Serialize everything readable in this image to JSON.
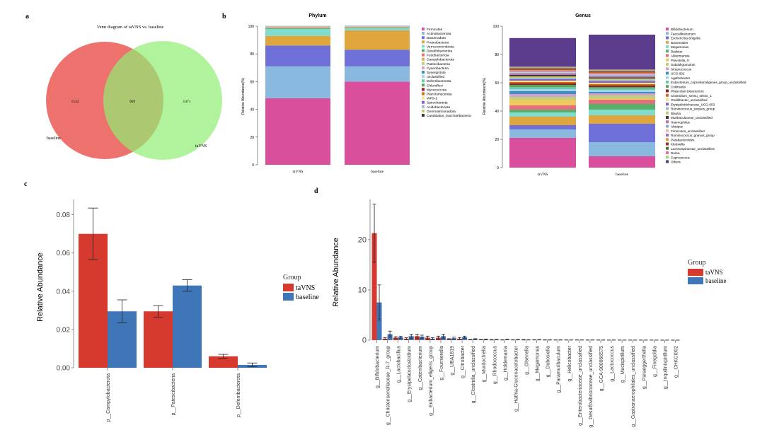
{
  "panels": {
    "a": {
      "letter": "a",
      "chart_title": "Venn diagram of taVNS vs. baseline",
      "left_label": "baseline",
      "right_label": "taVNS",
      "left_only": "1533",
      "overlap": "969",
      "right_only": "1471",
      "left_color": "#ec6a66",
      "right_color": "#90ee72"
    },
    "b": {
      "letter": "b",
      "ylabel": "Relative Abundance(%)",
      "y_ticks": [
        "0",
        "20",
        "40",
        "60",
        "80",
        "100"
      ]
    },
    "c": {
      "letter": "c"
    },
    "d": {
      "letter": "d"
    }
  },
  "chart_data": [
    {
      "id": "b-phylum",
      "type": "bar",
      "stacked": true,
      "title": "Phylum",
      "categories": [
        "taVNS",
        "baseline"
      ],
      "ylabel": "Relative Abundance(%)",
      "ylim": [
        0,
        100
      ],
      "series": [
        {
          "name": "Firmicutes",
          "color": "#d94f9b",
          "values": [
            48,
            60
          ]
        },
        {
          "name": "Actinobacteriota",
          "color": "#8ab9df",
          "values": [
            23,
            11
          ]
        },
        {
          "name": "Bacteroidota",
          "color": "#6f6fd8",
          "values": [
            15,
            12
          ]
        },
        {
          "name": "Proteobacteria",
          "color": "#e0a63e",
          "values": [
            7,
            14
          ]
        },
        {
          "name": "Verrucomicrobiota",
          "color": "#7fdccf",
          "values": [
            5,
            1.5
          ]
        },
        {
          "name": "Desulfobacterota",
          "color": "#58b06a",
          "values": [
            0.6,
            0.4
          ]
        },
        {
          "name": "Fusobacteriota",
          "color": "#e56f7d",
          "values": [
            0.3,
            0.3
          ]
        },
        {
          "name": "Campylobacterota",
          "color": "#e8a75a",
          "values": [
            0.3,
            0.2
          ]
        },
        {
          "name": "Patescibacteria",
          "color": "#b8d37c",
          "values": [
            0.2,
            0.2
          ]
        },
        {
          "name": "Cyanobacteria",
          "color": "#d99fcf",
          "values": [
            0.1,
            0.1
          ]
        },
        {
          "name": "Synergistota",
          "color": "#3a8fc4",
          "values": [
            0.1,
            0.1
          ]
        },
        {
          "name": "unclassified",
          "color": "#a3d4e8",
          "values": [
            0.1,
            0.1
          ]
        },
        {
          "name": "Deferribacterota",
          "color": "#6ac9a8",
          "values": [
            0.05,
            0.05
          ]
        },
        {
          "name": "Chloroflexi",
          "color": "#5aa65a",
          "values": [
            0.05,
            0.05
          ]
        },
        {
          "name": "Myxococcota",
          "color": "#8b1f2d",
          "values": [
            0.05,
            0.05
          ]
        },
        {
          "name": "Planctomycetota",
          "color": "#d2691e",
          "values": [
            0.05,
            0.05
          ]
        },
        {
          "name": "WPS-2",
          "color": "#f0e68c",
          "values": [
            0.05,
            0.05
          ]
        },
        {
          "name": "Spirochaetota",
          "color": "#8a5cbf",
          "values": [
            0.05,
            0.05
          ]
        },
        {
          "name": "Acidobacteriota",
          "color": "#9fb6df",
          "values": [
            0.05,
            0.05
          ]
        },
        {
          "name": "Gemmatimonadota",
          "color": "#c9c96a",
          "values": [
            0.05,
            0.05
          ]
        },
        {
          "name": "Candidatus_Saccharibacteria",
          "color": "#3b3b3b",
          "values": [
            0.05,
            0.05
          ]
        }
      ]
    },
    {
      "id": "b-genus",
      "type": "bar",
      "stacked": true,
      "title": "Genus",
      "categories": [
        "taVNS",
        "baseline"
      ],
      "ylabel": "Relative Abundance(%)",
      "ylim": [
        0,
        100
      ],
      "series": [
        {
          "name": "Bifidobacterium",
          "color": "#d94f9b",
          "values": [
            21,
            8
          ]
        },
        {
          "name": "Faecalibacterium",
          "color": "#8ab9df",
          "values": [
            6,
            10
          ]
        },
        {
          "name": "Escherichia-Shigella",
          "color": "#6f6fd8",
          "values": [
            3,
            13
          ]
        },
        {
          "name": "Bacteroides",
          "color": "#e0a63e",
          "values": [
            6,
            6
          ]
        },
        {
          "name": "Megamonas",
          "color": "#7fdccf",
          "values": [
            3,
            4
          ]
        },
        {
          "name": "Dialister",
          "color": "#58b06a",
          "values": [
            2,
            4
          ]
        },
        {
          "name": "Akkermansia",
          "color": "#e56f7d",
          "values": [
            3,
            3
          ]
        },
        {
          "name": "Prevotella_9",
          "color": "#f0c860",
          "values": [
            4,
            1
          ]
        },
        {
          "name": "Subdoligranulum",
          "color": "#b8d37c",
          "values": [
            2,
            2
          ]
        },
        {
          "name": "Streptococcus",
          "color": "#d99fcf",
          "values": [
            2,
            1.5
          ]
        },
        {
          "name": "UCG-002",
          "color": "#3a8fc4",
          "values": [
            2,
            1
          ]
        },
        {
          "name": "Agathobacter",
          "color": "#a3d4e8",
          "values": [
            1.5,
            1.5
          ]
        },
        {
          "name": "Eubacterium_coprostanoligenes_group_unclassified",
          "color": "#6ac9a8",
          "values": [
            1.5,
            1
          ]
        },
        {
          "name": "Collinsella",
          "color": "#5aa65a",
          "values": [
            1.5,
            1
          ]
        },
        {
          "name": "Phascolarctobacterium",
          "color": "#8b1f2d",
          "values": [
            1,
            1
          ]
        },
        {
          "name": "Clostridium_sensu_stricto_1",
          "color": "#d2691e",
          "values": [
            1,
            1
          ]
        },
        {
          "name": "Oscillibacter_unclassified",
          "color": "#f0e68c",
          "values": [
            1,
            1
          ]
        },
        {
          "name": "Erysipelotrichaceae_UCG-003",
          "color": "#8a5cbf",
          "values": [
            1,
            1
          ]
        },
        {
          "name": "Ruminococcus_torques_group",
          "color": "#9fb6df",
          "values": [
            1,
            1
          ]
        },
        {
          "name": "Blautia",
          "color": "#c9c96a",
          "values": [
            1,
            1
          ]
        },
        {
          "name": "Muribaculaceae_unclassified",
          "color": "#3b3b3b",
          "values": [
            1,
            0.8
          ]
        },
        {
          "name": "Haemophilus",
          "color": "#c86b9f",
          "values": [
            0.8,
            0.8
          ]
        },
        {
          "name": "Alistipes",
          "color": "#7db0d6",
          "values": [
            0.8,
            0.8
          ]
        },
        {
          "name": "Firmicutes_unclassified",
          "color": "#f2b6a0",
          "values": [
            0.8,
            0.6
          ]
        },
        {
          "name": "Ruminococcus_gnavus_group",
          "color": "#9c6fc6",
          "values": [
            0.6,
            0.6
          ]
        },
        {
          "name": "Parabacteroides",
          "color": "#e39a3c",
          "values": [
            0.6,
            0.6
          ]
        },
        {
          "name": "Klebsiella",
          "color": "#b22222",
          "values": [
            0.6,
            0.6
          ]
        },
        {
          "name": "Lachnospiraceae_unclassified",
          "color": "#4a7a3a",
          "values": [
            0.6,
            0.5
          ]
        },
        {
          "name": "Dorea",
          "color": "#e8699a",
          "values": [
            0.5,
            0.5
          ]
        },
        {
          "name": "Coprococcus",
          "color": "#a9d86e",
          "values": [
            0.5,
            0.5
          ]
        },
        {
          "name": "Others",
          "color": "#5b3b8c",
          "values": [
            20.3,
            24.7
          ]
        }
      ]
    },
    {
      "id": "c",
      "type": "bar",
      "categories": [
        "p__Campylobacterota",
        "p__Patescibacteria",
        "p__Deferribacterota"
      ],
      "ylabel": "Relative Abundance",
      "ylim": [
        0,
        0.088
      ],
      "y_ticks": [
        "0.00",
        "0.02",
        "0.04",
        "0.06",
        "0.08"
      ],
      "legend_title": "Group",
      "series": [
        {
          "name": "taVNS",
          "color": "#d63a2f",
          "values": [
            0.07,
            0.0295,
            0.006
          ],
          "errors": [
            0.0135,
            0.003,
            0.001
          ]
        },
        {
          "name": "baseline",
          "color": "#3f76b8",
          "values": [
            0.0295,
            0.043,
            0.0015
          ],
          "errors": [
            0.006,
            0.003,
            0.001
          ]
        }
      ]
    },
    {
      "id": "d",
      "type": "bar",
      "categories": [
        "g__Bifidobacterium",
        "g__Christensenellaceae_R-7_group",
        "g__Lactobacillus",
        "g__Erysipelatoclostridium",
        "g__Catenibacterium",
        "g__Eubacterium_eligens_group",
        "g__Fournierella",
        "g__UBA1819",
        "g__Citrobacter",
        "g__Clostridia_unclassified",
        "g__Murdochiella",
        "g__Rhodococcus",
        "g__Holdemania",
        "g__Hathia-Gluconacetobacter",
        "g__Olsenella",
        "g__Megamonas",
        "g__Dubosiella",
        "g__Paramuribaculum",
        "g__Helicobacter",
        "g__Enterobacteriaceae_unclassified",
        "g__Desulfovibrionaceae_unclassified",
        "g__GCA-900066575",
        "g__Lactococcus",
        "g__Mucispirillum",
        "g__Gastranaerophilales_unclassified",
        "g__Paraeggerthella",
        "g__Finegoldia",
        "g__Inquilinispirillum",
        "g__CHKCI002"
      ],
      "ylabel": "Relative Abundance",
      "ylim": [
        0,
        28
      ],
      "y_ticks": [
        "0",
        "10",
        "20"
      ],
      "legend_title": "Group",
      "series": [
        {
          "name": "taVNS",
          "color": "#d63a2f",
          "values": [
            21.3,
            0.3,
            0.5,
            0.3,
            0.8,
            0.5,
            0.5,
            0.2,
            0.3,
            0.1,
            0.1,
            0.08,
            0.06,
            0.06,
            0.08,
            0.06,
            0.05,
            0.04,
            0.04,
            0.04,
            0.03,
            0.03,
            0.02,
            0.02,
            0.02,
            0.02,
            0.02,
            0.01,
            0.01
          ],
          "errors": [
            5.8,
            0.2,
            0.2,
            0.2,
            0.4,
            0.3,
            0.3,
            0.1,
            0.2,
            0.05,
            0.05,
            0.05,
            0.03,
            0.03,
            0.05,
            0.03,
            0.03,
            0.02,
            0.02,
            0.02,
            0.02,
            0.02,
            0.01,
            0.01,
            0.01,
            0.01,
            0.01,
            0.01,
            0.01
          ]
        },
        {
          "name": "baseline",
          "color": "#3f76b8",
          "values": [
            7.5,
            1.2,
            0.6,
            0.8,
            0.7,
            0.3,
            0.8,
            0.4,
            0.6,
            0.2,
            0.15,
            0.1,
            0.12,
            0.1,
            0.06,
            0.08,
            0.05,
            0.05,
            0.04,
            0.04,
            0.04,
            0.03,
            0.03,
            0.02,
            0.02,
            0.02,
            0.02,
            0.02,
            0.01
          ],
          "errors": [
            3.5,
            0.6,
            0.2,
            0.4,
            0.3,
            0.2,
            0.4,
            0.2,
            0.2,
            0.1,
            0.08,
            0.05,
            0.06,
            0.05,
            0.03,
            0.04,
            0.03,
            0.03,
            0.02,
            0.02,
            0.02,
            0.02,
            0.02,
            0.01,
            0.01,
            0.01,
            0.01,
            0.01,
            0.01
          ]
        }
      ]
    }
  ]
}
